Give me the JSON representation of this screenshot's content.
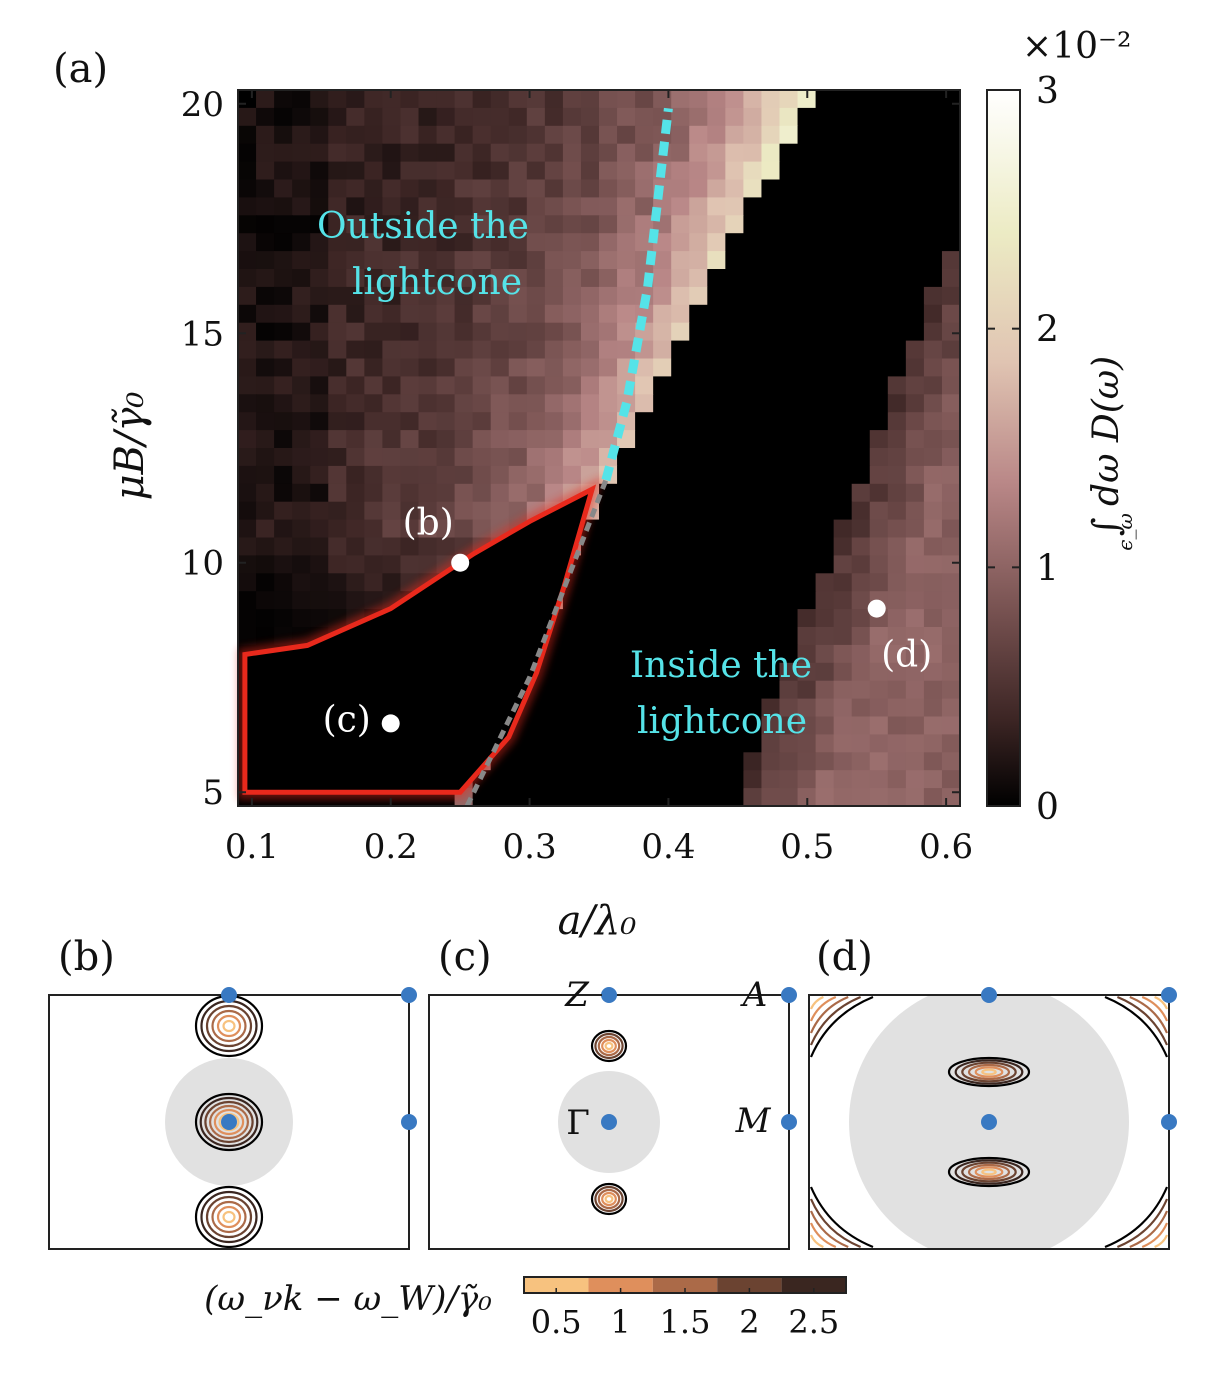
{
  "panel_labels": {
    "a": "(a)",
    "b": "(b)",
    "c": "(c)",
    "d": "(d)"
  },
  "chart_data": [
    {
      "type": "heatmap",
      "panel": "(a)",
      "xlabel": "a/λ₀",
      "ylabel": "μB/γ̃₀",
      "xlim": [
        0.09,
        0.61
      ],
      "ylim": [
        4.7,
        20.3
      ],
      "xticks": [
        "0.1",
        "0.2",
        "0.3",
        "0.4",
        "0.5",
        "0.6"
      ],
      "yticks": [
        "5",
        "10",
        "15",
        "20"
      ],
      "colorbar": {
        "label": "∫ dω D(ω)",
        "label_sub": "ϵ_ω",
        "scale_factor": "×10⁻²",
        "range": [
          0,
          3
        ],
        "ticks": [
          "0",
          "1",
          "2",
          "3"
        ],
        "colors": [
          "#000000",
          "#3c2524",
          "#7a5453",
          "#b98787",
          "#e0c4b2",
          "#ecebc4",
          "#ffffff"
        ]
      },
      "grid_description": "noisy heatmap of 0.01-0.0125 steps; low values at small a, increasing toward the lightcone; zero inside the lightcone wedge",
      "regions": [
        {
          "label_line1": "Outside the",
          "label_line2": "lightcone",
          "color": "#55e3e8"
        },
        {
          "label_line1": "Inside the",
          "label_line2": "lightcone",
          "color": "#55e3e8"
        }
      ],
      "lightcone_line": {
        "color": "#55e3e8",
        "points": [
          [
            0.355,
            11.8
          ],
          [
            0.37,
            13.5
          ],
          [
            0.385,
            16.0
          ],
          [
            0.4,
            19.9
          ]
        ]
      },
      "gray_dashed_line": {
        "color": "#888888",
        "points": [
          [
            0.255,
            4.7
          ],
          [
            0.3,
            7.5
          ],
          [
            0.355,
            11.8
          ]
        ]
      },
      "highlight_region": {
        "color": "#e8291c",
        "points": [
          [
            0.095,
            5.0
          ],
          [
            0.095,
            8.0
          ],
          [
            0.14,
            8.2
          ],
          [
            0.2,
            9.0
          ],
          [
            0.26,
            10.2
          ],
          [
            0.3,
            10.9
          ],
          [
            0.345,
            11.6
          ],
          [
            0.325,
            9.5
          ],
          [
            0.305,
            7.6
          ],
          [
            0.285,
            6.2
          ],
          [
            0.25,
            5.0
          ]
        ]
      },
      "points": [
        {
          "label": "(b)",
          "x": 0.25,
          "y": 10.0
        },
        {
          "label": "(c)",
          "x": 0.2,
          "y": 6.5
        },
        {
          "label": "(d)",
          "x": 0.55,
          "y": 9.0
        }
      ]
    },
    {
      "type": "contour",
      "panels": [
        "(b)",
        "(c)",
        "(d)"
      ],
      "bz_labels": {
        "Z": "Z",
        "A": "A",
        "Gamma": "Γ",
        "M": "M"
      },
      "colorbar": {
        "label": "(ω_νk − ω_W)/γ̃₀",
        "ticks": [
          "0.5",
          "1",
          "1.5",
          "2",
          "2.5"
        ],
        "range": [
          0.25,
          2.75
        ],
        "levels": [
          0.25,
          0.75,
          1.25,
          1.75,
          2.25,
          2.75
        ],
        "colors": [
          "#f7c27f",
          "#df8f5c",
          "#ab6a48",
          "#6b4331",
          "#3a2620",
          "#000000"
        ]
      }
    }
  ]
}
